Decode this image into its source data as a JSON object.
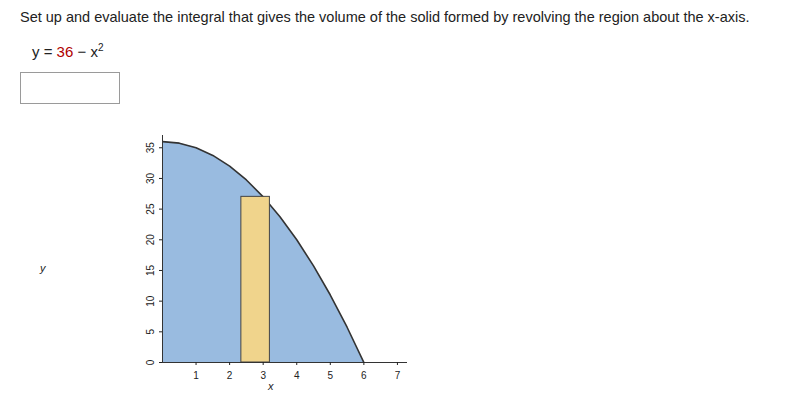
{
  "question": "Set up and evaluate the integral that gives the volume of the solid formed by revolving the region about the x-axis.",
  "equation": {
    "lhs": "y =",
    "constant": "36",
    "rest": "− x",
    "exponent": "2"
  },
  "chart_data": {
    "type": "area",
    "x": [
      0,
      0.5,
      1,
      1.5,
      2,
      2.5,
      3,
      3.5,
      4,
      4.5,
      5,
      5.5,
      6
    ],
    "values": [
      36,
      35.75,
      35,
      33.75,
      32,
      29.75,
      27,
      23.75,
      20,
      15.75,
      11,
      5.75,
      0
    ],
    "color": "#99bbe0",
    "rectangle": {
      "x": [
        2.35,
        3.2
      ],
      "height": 27,
      "color": "#f0d48c"
    },
    "x_label": "x",
    "y_label": "y",
    "xlim": [
      0,
      7.3
    ],
    "ylim": [
      0,
      37
    ],
    "xticks": [
      1,
      2,
      3,
      4,
      5,
      6,
      7
    ],
    "yticks": [
      0,
      5,
      10,
      15,
      20,
      25,
      30,
      35
    ],
    "grid": false
  }
}
